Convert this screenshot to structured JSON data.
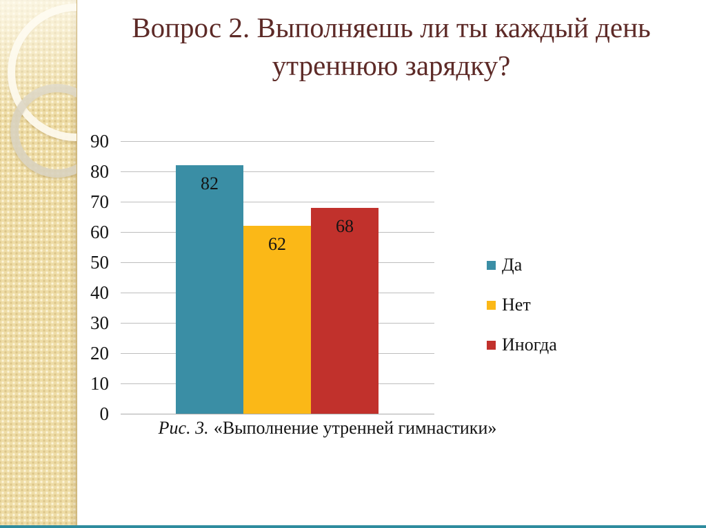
{
  "slide": {
    "title_line1": "Вопрос 2. Выполняешь ли ты каждый день",
    "title_line2": "утреннюю зарядку?",
    "caption": {
      "prefix": "Рис. 3.",
      "text": "«Выполнение утренней гимнастики»"
    }
  },
  "chart_data": {
    "type": "bar",
    "categories": [
      "Да",
      "Нет",
      "Иногда"
    ],
    "values": [
      82,
      62,
      68
    ],
    "data_labels": [
      "82",
      "62",
      "68"
    ],
    "bar_colors": [
      "#3A8EA5",
      "#FBB817",
      "#C1312C"
    ],
    "y_ticks": [
      90,
      80,
      70,
      60,
      50,
      40,
      30,
      20,
      10,
      0
    ],
    "ylim": [
      0,
      90
    ],
    "grid": true,
    "legend_position": "right",
    "legend": [
      {
        "label": "Да",
        "color": "#3A8EA5"
      },
      {
        "label": "Нет",
        "color": "#FBB817"
      },
      {
        "label": "Иногда",
        "color": "#C1312C"
      }
    ]
  },
  "theme": {
    "title_color": "#5D2A27",
    "grid_color": "#BDBDBD",
    "sidebar_color": "#EEDCA6",
    "accent_line_color": "#2E8C9E",
    "text_color": "#141414",
    "background_color": "#FFFFFF"
  }
}
